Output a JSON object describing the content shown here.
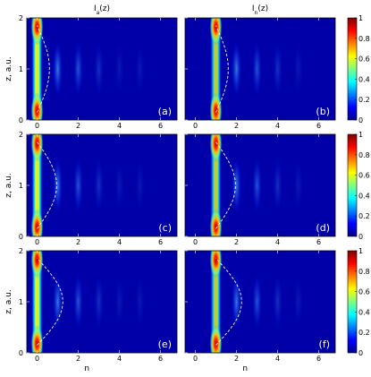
{
  "chart_data": {
    "type": "heatmap",
    "column_titles": [
      "Iₐ(z)",
      "Iₙ(z)"
    ],
    "column_title_base": "I",
    "column_title_subs": [
      "a",
      "n"
    ],
    "column_title_suffix": "(z)",
    "xlabel": "n",
    "ylabel": "z, a.u.",
    "xlim": [
      -0.5,
      6.8
    ],
    "ylim": [
      0,
      2
    ],
    "x_ticks": [
      "0",
      "2",
      "4",
      "6"
    ],
    "x_tick_values": [
      0,
      2,
      4,
      6
    ],
    "y_ticks": [
      "0",
      "1",
      "2"
    ],
    "y_tick_values": [
      0,
      1,
      2
    ],
    "colorbar": {
      "min": 0,
      "max": 1,
      "ticks": [
        "0",
        "0.2",
        "0.4",
        "0.6",
        "0.8",
        "1"
      ],
      "tick_values": [
        0,
        0.2,
        0.4,
        0.6,
        0.8,
        1
      ],
      "colormap": "jet"
    },
    "panels": [
      {
        "label": "(a)",
        "row": 0,
        "col": 0,
        "peak_n": 0,
        "dashed_amplitude": 0.6
      },
      {
        "label": "(b)",
        "row": 0,
        "col": 1,
        "peak_n": 1,
        "dashed_amplitude": 0.6
      },
      {
        "label": "(c)",
        "row": 1,
        "col": 0,
        "peak_n": 0,
        "dashed_amplitude": 0.95
      },
      {
        "label": "(d)",
        "row": 1,
        "col": 1,
        "peak_n": 1,
        "dashed_amplitude": 0.95
      },
      {
        "label": "(e)",
        "row": 2,
        "col": 0,
        "peak_n": 0,
        "dashed_amplitude": 1.25
      },
      {
        "label": "(f)",
        "row": 2,
        "col": 1,
        "peak_n": 1,
        "dashed_amplitude": 1.25
      }
    ],
    "side_bands_n": [
      1,
      2,
      3,
      4,
      5
    ]
  }
}
